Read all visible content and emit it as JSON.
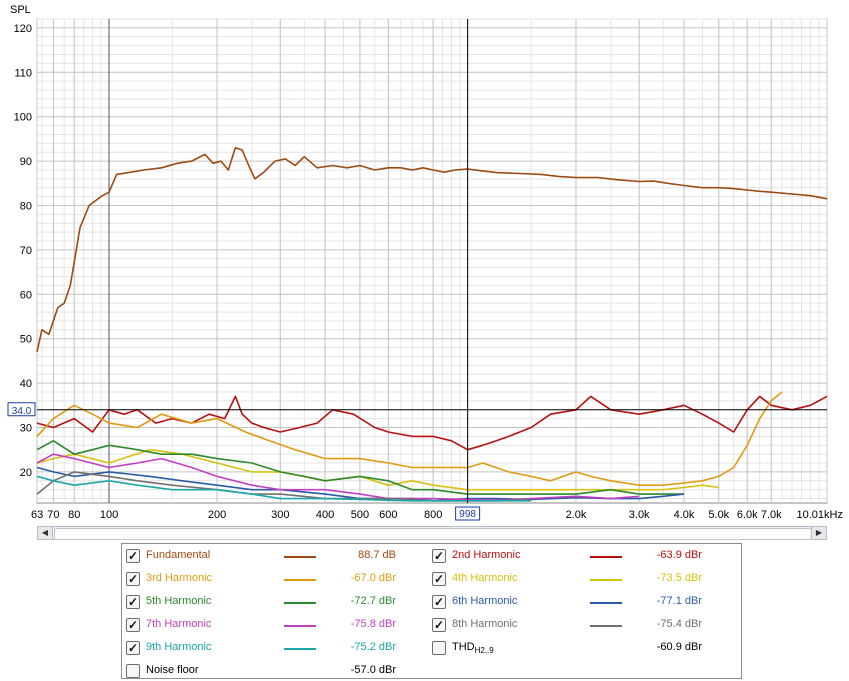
{
  "chart_data": {
    "type": "line",
    "ylabel": "SPL",
    "ylim": [
      13,
      122
    ],
    "xlim_hz": [
      63,
      10010
    ],
    "x_scale": "log",
    "y_ticks": [
      120,
      110,
      100,
      90,
      80,
      70,
      60,
      50,
      40,
      30,
      20
    ],
    "x_ticks": [
      {
        "hz": 63,
        "label": "63"
      },
      {
        "hz": 70,
        "label": "70"
      },
      {
        "hz": 80,
        "label": "80"
      },
      {
        "hz": 100,
        "label": "100"
      },
      {
        "hz": 200,
        "label": "200"
      },
      {
        "hz": 300,
        "label": "300"
      },
      {
        "hz": 400,
        "label": "400"
      },
      {
        "hz": 500,
        "label": "500"
      },
      {
        "hz": 600,
        "label": "600"
      },
      {
        "hz": 800,
        "label": "800"
      },
      {
        "hz": 2000,
        "label": "2.0k"
      },
      {
        "hz": 3000,
        "label": "3.0k"
      },
      {
        "hz": 4000,
        "label": "4.0k"
      },
      {
        "hz": 5000,
        "label": "5.0k"
      },
      {
        "hz": 6000,
        "label": "6.0k"
      },
      {
        "hz": 7000,
        "label": "7.0k"
      },
      {
        "hz": 10010,
        "label": "10.01kHz"
      }
    ],
    "cursor": {
      "x_hz": 998,
      "x_label": "998",
      "y_db": 34.0,
      "y_label": "34.0"
    },
    "grid": true,
    "series": [
      {
        "name": "Fundamental",
        "color": "#9c4a12",
        "points": [
          [
            63,
            47
          ],
          [
            65,
            52
          ],
          [
            68,
            51
          ],
          [
            72,
            57
          ],
          [
            75,
            58
          ],
          [
            78,
            62
          ],
          [
            83,
            75
          ],
          [
            88,
            80
          ],
          [
            95,
            82
          ],
          [
            100,
            83
          ],
          [
            105,
            87
          ],
          [
            115,
            87.5
          ],
          [
            125,
            88
          ],
          [
            140,
            88.5
          ],
          [
            155,
            89.5
          ],
          [
            170,
            90
          ],
          [
            185,
            91.5
          ],
          [
            195,
            89.5
          ],
          [
            205,
            90
          ],
          [
            215,
            88
          ],
          [
            225,
            93
          ],
          [
            235,
            92.5
          ],
          [
            245,
            89
          ],
          [
            255,
            86
          ],
          [
            270,
            87.5
          ],
          [
            290,
            90
          ],
          [
            310,
            90.5
          ],
          [
            330,
            89
          ],
          [
            350,
            91
          ],
          [
            380,
            88.5
          ],
          [
            420,
            89
          ],
          [
            460,
            88.5
          ],
          [
            500,
            89
          ],
          [
            550,
            88
          ],
          [
            600,
            88.5
          ],
          [
            650,
            88.5
          ],
          [
            700,
            88
          ],
          [
            750,
            88.5
          ],
          [
            800,
            88
          ],
          [
            860,
            87.5
          ],
          [
            920,
            88
          ],
          [
            998,
            88.2
          ],
          [
            1100,
            87.8
          ],
          [
            1200,
            87.4
          ],
          [
            1400,
            87.2
          ],
          [
            1600,
            87
          ],
          [
            1800,
            86.5
          ],
          [
            2000,
            86.3
          ],
          [
            2300,
            86.3
          ],
          [
            2600,
            85.8
          ],
          [
            3000,
            85.4
          ],
          [
            3300,
            85.5
          ],
          [
            3600,
            85
          ],
          [
            4000,
            84.5
          ],
          [
            4500,
            84
          ],
          [
            5000,
            84
          ],
          [
            5500,
            83.8
          ],
          [
            6000,
            83.5
          ],
          [
            6500,
            83.2
          ],
          [
            7000,
            83
          ],
          [
            8000,
            82.6
          ],
          [
            9000,
            82.2
          ],
          [
            10010,
            81.5
          ]
        ]
      },
      {
        "name": "2nd Harmonic",
        "color": "#b80f0f",
        "points": [
          [
            63,
            31
          ],
          [
            70,
            30
          ],
          [
            80,
            32
          ],
          [
            90,
            29
          ],
          [
            100,
            34
          ],
          [
            110,
            33
          ],
          [
            120,
            34
          ],
          [
            135,
            31
          ],
          [
            150,
            32
          ],
          [
            170,
            31
          ],
          [
            190,
            33
          ],
          [
            210,
            32
          ],
          [
            225,
            37
          ],
          [
            235,
            33
          ],
          [
            250,
            31
          ],
          [
            270,
            30
          ],
          [
            300,
            29
          ],
          [
            340,
            30
          ],
          [
            380,
            31
          ],
          [
            420,
            34
          ],
          [
            480,
            33
          ],
          [
            550,
            30
          ],
          [
            600,
            29
          ],
          [
            700,
            28
          ],
          [
            800,
            28
          ],
          [
            900,
            27
          ],
          [
            998,
            25
          ],
          [
            1100,
            26
          ],
          [
            1200,
            27
          ],
          [
            1300,
            28
          ],
          [
            1500,
            30
          ],
          [
            1700,
            33
          ],
          [
            2000,
            34
          ],
          [
            2200,
            37
          ],
          [
            2500,
            34
          ],
          [
            3000,
            33
          ],
          [
            3500,
            34
          ],
          [
            4000,
            35
          ],
          [
            4500,
            33
          ],
          [
            5000,
            31
          ],
          [
            5500,
            29
          ],
          [
            6000,
            34
          ],
          [
            6500,
            37
          ],
          [
            7000,
            35
          ],
          [
            8000,
            34
          ],
          [
            9000,
            35
          ],
          [
            10010,
            37
          ]
        ]
      },
      {
        "name": "3rd Harmonic",
        "color": "#e09a10",
        "points": [
          [
            63,
            28
          ],
          [
            70,
            32
          ],
          [
            80,
            35
          ],
          [
            90,
            33
          ],
          [
            100,
            31
          ],
          [
            120,
            30
          ],
          [
            140,
            33
          ],
          [
            170,
            31
          ],
          [
            200,
            32
          ],
          [
            240,
            29
          ],
          [
            280,
            27
          ],
          [
            330,
            25
          ],
          [
            400,
            23
          ],
          [
            500,
            23
          ],
          [
            600,
            22
          ],
          [
            700,
            21
          ],
          [
            800,
            21
          ],
          [
            998,
            21
          ],
          [
            1100,
            22
          ],
          [
            1300,
            20
          ],
          [
            1500,
            19
          ],
          [
            1700,
            18
          ],
          [
            2000,
            20
          ],
          [
            2200,
            19
          ],
          [
            2500,
            18
          ],
          [
            3000,
            17
          ],
          [
            3500,
            17
          ],
          [
            4000,
            17.5
          ],
          [
            4500,
            18
          ],
          [
            5000,
            19
          ],
          [
            5500,
            21
          ],
          [
            6000,
            26
          ],
          [
            6500,
            32
          ],
          [
            7000,
            36
          ],
          [
            7500,
            38
          ]
        ]
      },
      {
        "name": "4th Harmonic",
        "color": "#d8c010",
        "points": [
          [
            63,
            22
          ],
          [
            70,
            23
          ],
          [
            80,
            24
          ],
          [
            100,
            22
          ],
          [
            130,
            25
          ],
          [
            160,
            24
          ],
          [
            200,
            22
          ],
          [
            250,
            20
          ],
          [
            300,
            20
          ],
          [
            400,
            18
          ],
          [
            500,
            19
          ],
          [
            600,
            17
          ],
          [
            700,
            18
          ],
          [
            800,
            17
          ],
          [
            998,
            16
          ],
          [
            1200,
            16
          ],
          [
            1500,
            16
          ],
          [
            2000,
            16
          ],
          [
            2500,
            16
          ],
          [
            3000,
            16
          ],
          [
            3500,
            16
          ],
          [
            4000,
            16.5
          ],
          [
            4500,
            17
          ],
          [
            5000,
            16.5
          ]
        ]
      },
      {
        "name": "5th Harmonic",
        "color": "#2a8a2a",
        "points": [
          [
            63,
            25
          ],
          [
            70,
            27
          ],
          [
            80,
            24
          ],
          [
            90,
            25
          ],
          [
            100,
            26
          ],
          [
            120,
            25
          ],
          [
            140,
            24
          ],
          [
            170,
            24
          ],
          [
            200,
            23
          ],
          [
            250,
            22
          ],
          [
            300,
            20
          ],
          [
            350,
            19
          ],
          [
            400,
            18
          ],
          [
            500,
            19
          ],
          [
            600,
            18
          ],
          [
            700,
            16
          ],
          [
            800,
            16
          ],
          [
            998,
            15
          ],
          [
            1200,
            15
          ],
          [
            1500,
            15
          ],
          [
            2000,
            15
          ],
          [
            2500,
            16
          ],
          [
            3000,
            15
          ],
          [
            3500,
            15
          ],
          [
            4000,
            15
          ]
        ]
      },
      {
        "name": "6th Harmonic",
        "color": "#2a5aa8",
        "points": [
          [
            63,
            21
          ],
          [
            70,
            20
          ],
          [
            80,
            19
          ],
          [
            100,
            20
          ],
          [
            130,
            19
          ],
          [
            160,
            18
          ],
          [
            200,
            17
          ],
          [
            250,
            16
          ],
          [
            300,
            16
          ],
          [
            400,
            15
          ],
          [
            500,
            14
          ],
          [
            600,
            14
          ],
          [
            700,
            14
          ],
          [
            800,
            13.5
          ],
          [
            998,
            14
          ],
          [
            1200,
            14
          ],
          [
            1500,
            13.8
          ],
          [
            2000,
            14.2
          ],
          [
            2500,
            14
          ],
          [
            3000,
            14
          ],
          [
            3500,
            14.5
          ],
          [
            4000,
            15
          ]
        ]
      },
      {
        "name": "7th Harmonic",
        "color": "#c040c0",
        "points": [
          [
            63,
            22
          ],
          [
            70,
            24
          ],
          [
            80,
            23
          ],
          [
            100,
            21
          ],
          [
            120,
            22
          ],
          [
            140,
            23
          ],
          [
            170,
            21
          ],
          [
            200,
            19
          ],
          [
            250,
            17
          ],
          [
            300,
            16
          ],
          [
            400,
            16
          ],
          [
            500,
            15
          ],
          [
            600,
            14
          ],
          [
            700,
            14
          ],
          [
            800,
            14
          ],
          [
            998,
            13.8
          ],
          [
            1200,
            13.6
          ],
          [
            1500,
            14
          ],
          [
            2000,
            14.5
          ],
          [
            2500,
            14
          ],
          [
            3000,
            14.5
          ]
        ]
      },
      {
        "name": "8th Harmonic",
        "color": "#707070",
        "points": [
          [
            63,
            15
          ],
          [
            70,
            18
          ],
          [
            80,
            20
          ],
          [
            100,
            19
          ],
          [
            120,
            18
          ],
          [
            150,
            17
          ],
          [
            200,
            16
          ],
          [
            250,
            15
          ],
          [
            300,
            15
          ],
          [
            400,
            14
          ],
          [
            500,
            14
          ],
          [
            600,
            14
          ],
          [
            700,
            13.8
          ],
          [
            800,
            13.5
          ],
          [
            998,
            13.5
          ],
          [
            1200,
            13.5
          ],
          [
            1500,
            13.8
          ]
        ]
      },
      {
        "name": "9th Harmonic",
        "color": "#1aa6a6",
        "points": [
          [
            63,
            19
          ],
          [
            70,
            18
          ],
          [
            80,
            17
          ],
          [
            100,
            18
          ],
          [
            120,
            17
          ],
          [
            150,
            16
          ],
          [
            200,
            16
          ],
          [
            250,
            15
          ],
          [
            300,
            14
          ],
          [
            400,
            14
          ],
          [
            500,
            13.8
          ],
          [
            600,
            13.6
          ],
          [
            700,
            13.5
          ],
          [
            800,
            13.5
          ],
          [
            998,
            13.5
          ],
          [
            1200,
            13.5
          ],
          [
            1500,
            13.5
          ]
        ]
      }
    ]
  },
  "legend": {
    "rows": [
      {
        "checked": true,
        "name": "Fundamental",
        "color": "#9c4a12",
        "value": "88.7 dB"
      },
      {
        "checked": true,
        "name": "2nd Harmonic",
        "color": "#b80f0f",
        "value": "-63.9 dBr"
      },
      {
        "checked": true,
        "name": "3rd Harmonic",
        "color": "#e09a10",
        "value": "-67.0 dBr"
      },
      {
        "checked": true,
        "name": "4th Harmonic",
        "color": "#d8c010",
        "value": "-73.5 dBr"
      },
      {
        "checked": true,
        "name": "5th Harmonic",
        "color": "#2a8a2a",
        "value": "-72.7 dBr"
      },
      {
        "checked": true,
        "name": "6th Harmonic",
        "color": "#2a5aa8",
        "value": "-77.1 dBr"
      },
      {
        "checked": true,
        "name": "7th Harmonic",
        "color": "#c040c0",
        "value": "-75.8 dBr"
      },
      {
        "checked": true,
        "name": "8th Harmonic",
        "color": "#707070",
        "value": "-75.4 dBr"
      },
      {
        "checked": true,
        "name": "9th Harmonic",
        "color": "#1aa6a6",
        "value": "-75.2 dBr"
      },
      {
        "checked": false,
        "name": "THD",
        "sub": "H2..9",
        "color": "#000000",
        "value": "-60.9 dBr"
      },
      {
        "checked": false,
        "name": "Noise floor",
        "color": "#9c4a12",
        "value": "-57.0 dBr"
      }
    ]
  },
  "scrollbar": {
    "left_arrow": "◀",
    "right_arrow": "▶"
  }
}
